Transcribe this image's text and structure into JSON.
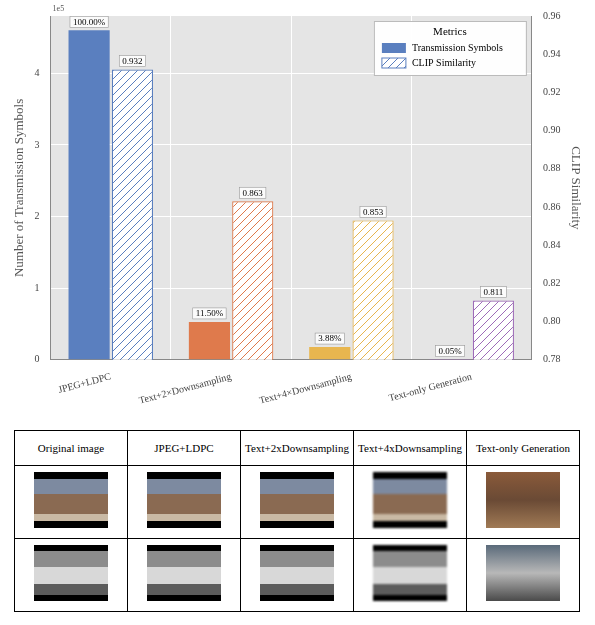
{
  "chart_data": {
    "type": "bar",
    "categories": [
      "JPEG+LDPC",
      "Text+2×Downsampling",
      "Text+4×Downsampling",
      "Text-only Generation"
    ],
    "y_label": "Number of Transmission Symbols",
    "y2_label": "CLIP Similarity",
    "y_multiplier": "1e5",
    "ylim": [
      0,
      4.8
    ],
    "yticks": [
      0,
      1,
      2,
      3,
      4
    ],
    "y2lim": [
      0.78,
      0.96
    ],
    "y2ticks": [
      0.78,
      {
        "value": 0.8,
        "label": "0.80"
      },
      0.82,
      0.84,
      0.86,
      0.88,
      {
        "value": 0.9,
        "label": "0.90"
      },
      0.92,
      0.94,
      0.96
    ],
    "grid": true,
    "legend": "upper right",
    "legend_title": "Metrics",
    "series": [
      {
        "name": "Transmission Symbols",
        "colors": [
          "#5a7fbf",
          "#df7a4c",
          "#e8b64f",
          "#9e6cb8"
        ],
        "values": [
          4.6,
          0.529,
          0.178,
          0.0023
        ],
        "percent_labels": [
          "100.00%",
          "11.50%",
          "3.88%",
          "0.05%"
        ],
        "data_labels": true
      },
      {
        "name": "CLIP Similarity",
        "axis": "y2",
        "colors": [
          "#5a7fbf",
          "#df7a4c",
          "#e8b64f",
          "#9e6cb8"
        ],
        "values": [
          0.932,
          0.863,
          0.853,
          0.811
        ],
        "data_labels": true
      }
    ]
  },
  "table": {
    "header": [
      "Original image",
      "JPEG+LDPC",
      "Text+2xDownsampling",
      "Text+4xDownsampling",
      "Text-only Generation"
    ]
  }
}
